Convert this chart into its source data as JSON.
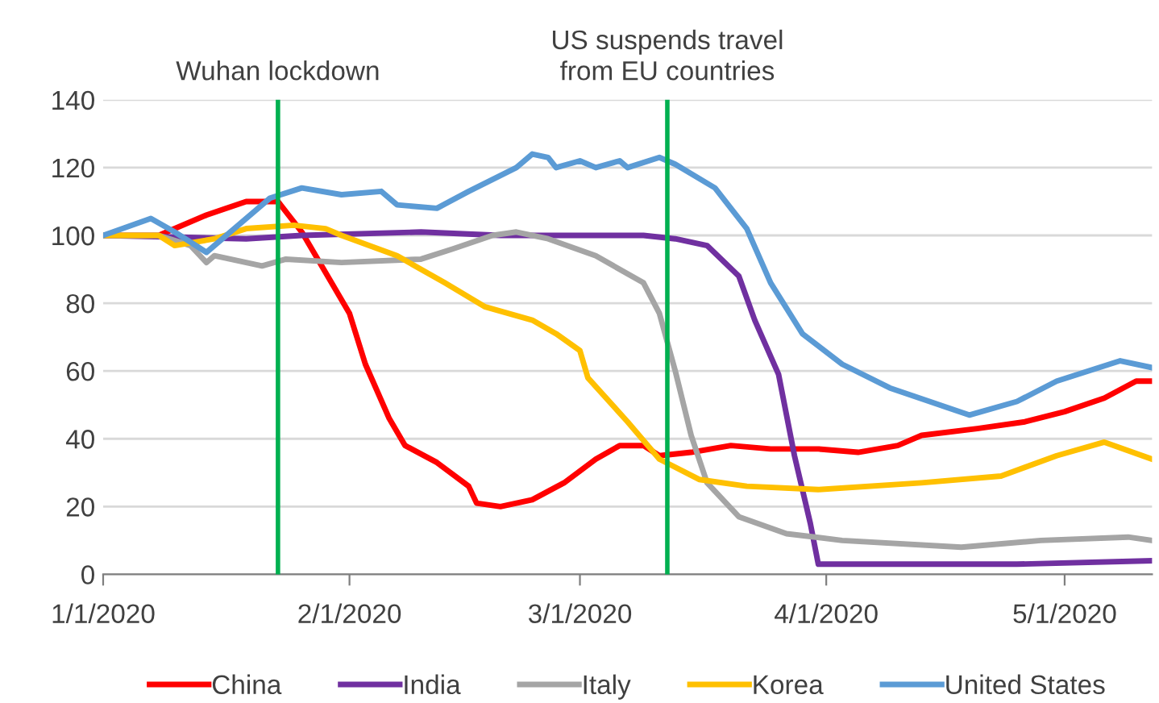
{
  "chart_data": {
    "type": "line",
    "xlim": [
      "2020-01-01",
      "2020-05-12"
    ],
    "xticks": [
      {
        "value": "2020-01-01",
        "label": "1/1/2020"
      },
      {
        "value": "2020-02-01",
        "label": "2/1/2020"
      },
      {
        "value": "2020-03-01",
        "label": "3/1/2020"
      },
      {
        "value": "2020-04-01",
        "label": "4/1/2020"
      },
      {
        "value": "2020-05-01",
        "label": "5/1/2020"
      }
    ],
    "ylim": [
      0,
      140
    ],
    "yticks": [
      0,
      20,
      40,
      60,
      80,
      100,
      120,
      140
    ],
    "grid": "y",
    "legend": "bottom",
    "line_style": "solid",
    "marker": "none",
    "ref_lines": [
      {
        "axis": "x",
        "value": "2020-01-23",
        "label": "Wuhan lockdown",
        "color": "#00b050"
      },
      {
        "axis": "x",
        "value": "2020-03-12",
        "label": "US suspends travel\nfrom EU countries",
        "color": "#00b050"
      }
    ],
    "series": [
      {
        "name": "China",
        "color": "#ff0000",
        "x": [
          "2020-01-01",
          "2020-01-08",
          "2020-01-14",
          "2020-01-19",
          "2020-01-23",
          "2020-01-26",
          "2020-01-30",
          "2020-02-01",
          "2020-02-03",
          "2020-02-06",
          "2020-02-08",
          "2020-02-12",
          "2020-02-16",
          "2020-02-17",
          "2020-02-20",
          "2020-02-24",
          "2020-02-28",
          "2020-03-03",
          "2020-03-06",
          "2020-03-09",
          "2020-03-11",
          "2020-03-15",
          "2020-03-20",
          "2020-03-25",
          "2020-03-31",
          "2020-04-05",
          "2020-04-10",
          "2020-04-13",
          "2020-04-20",
          "2020-04-26",
          "2020-05-01",
          "2020-05-06",
          "2020-05-10",
          "2020-05-12"
        ],
        "values": [
          100,
          100,
          106,
          110,
          110,
          101,
          85,
          77,
          62,
          46,
          38,
          33,
          26,
          21,
          20,
          22,
          27,
          34,
          38,
          38,
          35,
          36,
          38,
          37,
          37,
          36,
          38,
          41,
          43,
          45,
          48,
          52,
          57,
          57
        ]
      },
      {
        "name": "India",
        "color": "#7030a0",
        "x": [
          "2020-01-01",
          "2020-01-19",
          "2020-01-26",
          "2020-02-10",
          "2020-02-20",
          "2020-02-26",
          "2020-03-09",
          "2020-03-13",
          "2020-03-17",
          "2020-03-21",
          "2020-03-23",
          "2020-03-26",
          "2020-03-28",
          "2020-03-30",
          "2020-03-31",
          "2020-04-10",
          "2020-04-25",
          "2020-05-12"
        ],
        "values": [
          100,
          99,
          100,
          101,
          100,
          100,
          100,
          99,
          97,
          88,
          75,
          59,
          35,
          15,
          3,
          3,
          3,
          4
        ]
      },
      {
        "name": "Italy",
        "color": "#a5a5a5",
        "x": [
          "2020-01-01",
          "2020-01-08",
          "2020-01-12",
          "2020-01-14",
          "2020-01-15",
          "2020-01-21",
          "2020-01-24",
          "2020-01-31",
          "2020-02-10",
          "2020-02-14",
          "2020-02-19",
          "2020-02-22",
          "2020-02-26",
          "2020-03-03",
          "2020-03-09",
          "2020-03-11",
          "2020-03-13",
          "2020-03-15",
          "2020-03-17",
          "2020-03-21",
          "2020-03-27",
          "2020-04-03",
          "2020-04-18",
          "2020-04-28",
          "2020-05-09",
          "2020-05-12"
        ],
        "values": [
          100,
          100,
          97,
          92,
          94,
          91,
          93,
          92,
          93,
          96,
          100,
          101,
          99,
          94,
          86,
          77,
          60,
          41,
          27,
          17,
          12,
          10,
          8,
          10,
          11,
          10
        ]
      },
      {
        "name": "Korea",
        "color": "#ffc000",
        "x": [
          "2020-01-01",
          "2020-01-08",
          "2020-01-10",
          "2020-01-15",
          "2020-01-19",
          "2020-01-25",
          "2020-01-29",
          "2020-01-31",
          "2020-02-07",
          "2020-02-13",
          "2020-02-18",
          "2020-02-24",
          "2020-02-27",
          "2020-03-01",
          "2020-03-02",
          "2020-03-07",
          "2020-03-11",
          "2020-03-16",
          "2020-03-22",
          "2020-03-31",
          "2020-04-13",
          "2020-04-23",
          "2020-04-30",
          "2020-05-06",
          "2020-05-12"
        ],
        "values": [
          100,
          100,
          97,
          99,
          102,
          103,
          102,
          100,
          94,
          86,
          79,
          75,
          71,
          66,
          58,
          45,
          34,
          28,
          26,
          25,
          27,
          29,
          35,
          39,
          34
        ]
      },
      {
        "name": "United States",
        "color": "#5b9bd5",
        "x": [
          "2020-01-01",
          "2020-01-07",
          "2020-01-10",
          "2020-01-14",
          "2020-01-22",
          "2020-01-26",
          "2020-01-31",
          "2020-02-05",
          "2020-02-07",
          "2020-02-12",
          "2020-02-16",
          "2020-02-22",
          "2020-02-24",
          "2020-02-26",
          "2020-02-27",
          "2020-03-01",
          "2020-03-03",
          "2020-03-06",
          "2020-03-07",
          "2020-03-11",
          "2020-03-13",
          "2020-03-18",
          "2020-03-22",
          "2020-03-25",
          "2020-03-29",
          "2020-04-03",
          "2020-04-09",
          "2020-04-14",
          "2020-04-19",
          "2020-04-25",
          "2020-04-30",
          "2020-05-08",
          "2020-05-12"
        ],
        "values": [
          100,
          105,
          101,
          95,
          111,
          114,
          112,
          113,
          109,
          108,
          113,
          120,
          124,
          123,
          120,
          122,
          120,
          122,
          120,
          123,
          121,
          114,
          102,
          86,
          71,
          62,
          55,
          51,
          47,
          51,
          57,
          63,
          61
        ]
      }
    ]
  }
}
